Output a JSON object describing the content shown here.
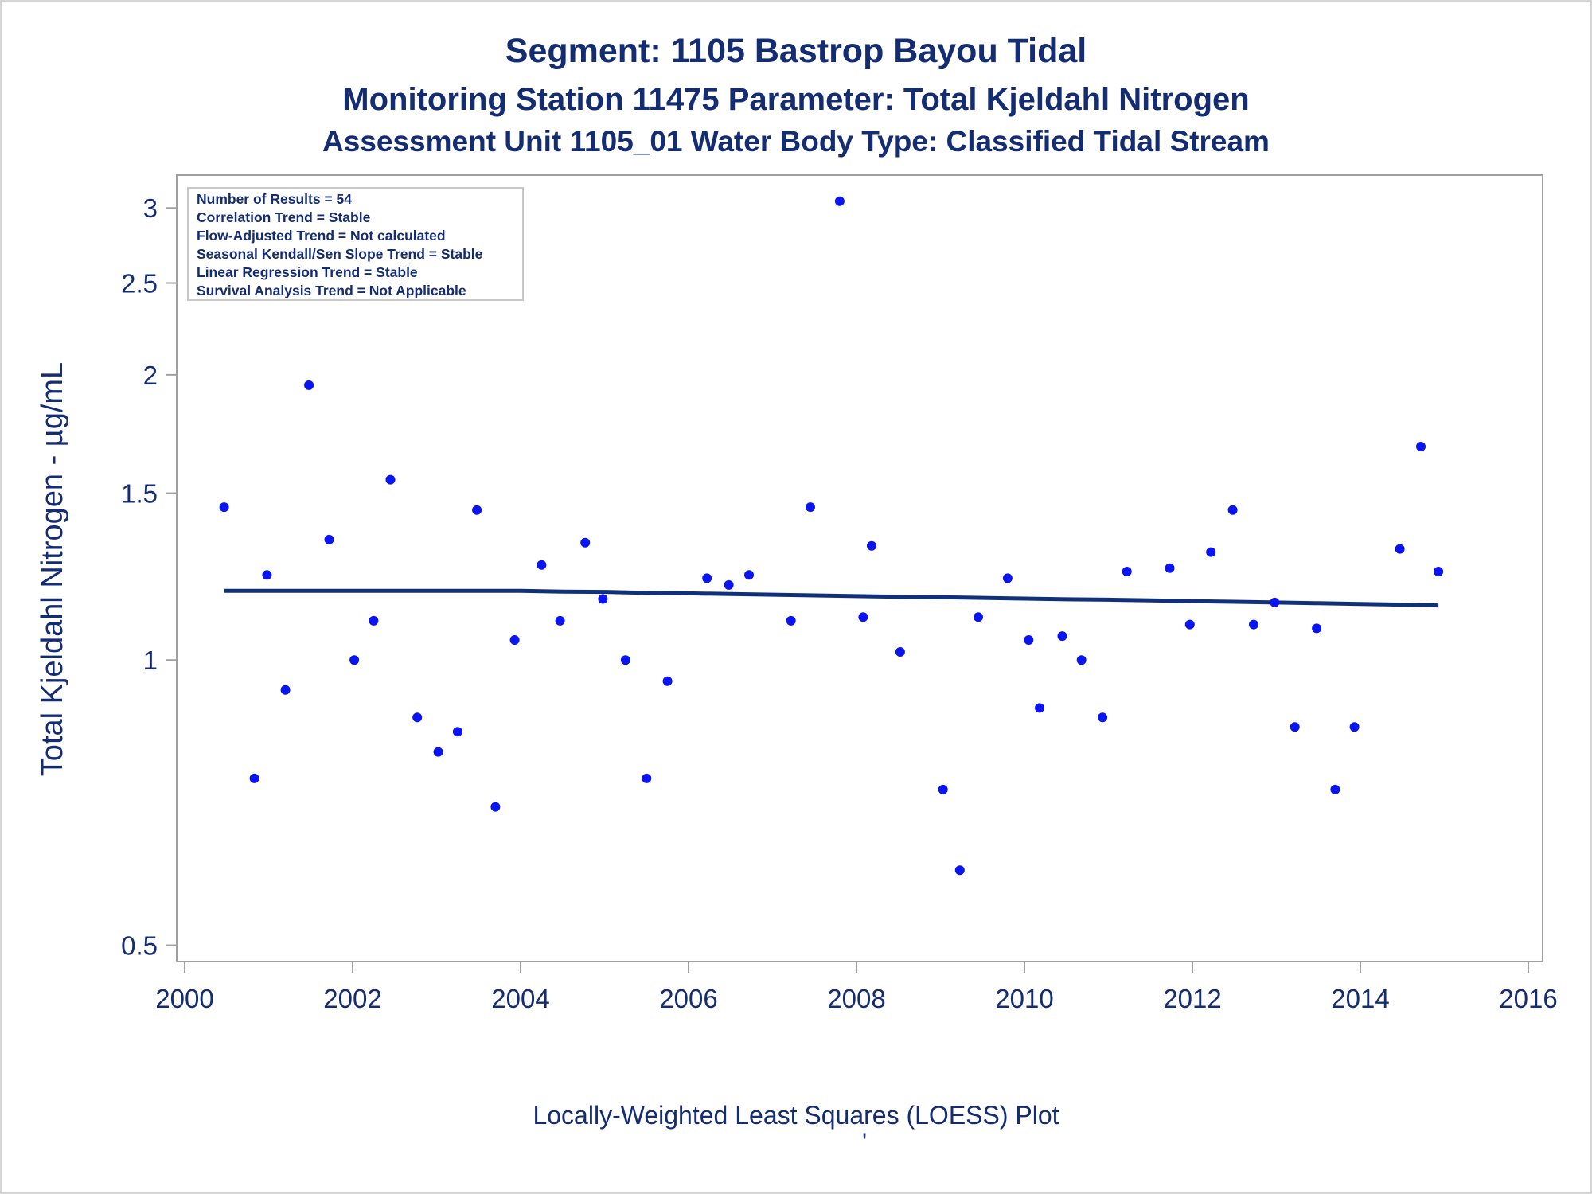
{
  "titles": {
    "line1": "Segment: 1105  Bastrop Bayou Tidal",
    "line2": "Monitoring Station 11475 Parameter: Total Kjeldahl Nitrogen",
    "line3": "Assessment Unit 1105_01   Water Body Type: Classified Tidal Stream"
  },
  "footnote": "Locally-Weighted Least Squares (LOESS) Plot",
  "footnote_mark": "'",
  "stats_box": [
    "Number of Results = 54",
    "Correlation Trend = Stable",
    "Flow-Adjusted Trend = Not calculated",
    "Seasonal Kendall/Sen Slope Trend = Stable",
    "Linear Regression Trend = Stable",
    "Survival Analysis Trend = Not Applicable"
  ],
  "colors": {
    "text": "#142c72",
    "points": "#0a14f0",
    "loess": "#10307a",
    "axis": "#a0a0a0"
  },
  "chart_data": {
    "type": "scatter",
    "ylabel": "Total Kjeldahl Nitrogen -  µg/mL",
    "xlabel": "",
    "x_ticks": [
      "2000",
      "2002",
      "2004",
      "2006",
      "2008",
      "2010",
      "2012",
      "2014",
      "2016"
    ],
    "y_ticks": [
      "0.5",
      "1",
      "1.5",
      "2",
      "2.5",
      "3"
    ],
    "xlim": [
      2000,
      2016
    ],
    "ylim": [
      0.49,
      3.15
    ],
    "y_scale": "log",
    "grid": false,
    "legend": "none",
    "series": [
      {
        "kind": "points",
        "x": [
          2000.47,
          2000.83,
          2000.98,
          2001.2,
          2001.48,
          2001.72,
          2002.02,
          2002.25,
          2002.45,
          2002.77,
          2003.02,
          2003.25,
          2003.48,
          2003.7,
          2003.93,
          2004.25,
          2004.47,
          2004.77,
          2004.98,
          2005.25,
          2005.5,
          2005.75,
          2006.22,
          2006.48,
          2006.72,
          2007.22,
          2007.45,
          2007.8,
          2008.08,
          2008.18,
          2008.52,
          2009.03,
          2009.23,
          2009.45,
          2009.8,
          2010.05,
          2010.18,
          2010.45,
          2010.68,
          2010.93,
          2011.22,
          2011.73,
          2011.97,
          2012.22,
          2012.48,
          2012.73,
          2012.98,
          2013.22,
          2013.48,
          2013.7,
          2013.93,
          2014.47,
          2014.72,
          2014.93
        ],
        "y": [
          1.45,
          0.75,
          1.23,
          0.93,
          1.95,
          1.34,
          1.0,
          1.1,
          1.55,
          0.87,
          0.8,
          0.84,
          1.44,
          0.7,
          1.05,
          1.26,
          1.1,
          1.33,
          1.16,
          1.0,
          0.75,
          0.95,
          1.22,
          1.2,
          1.23,
          1.1,
          1.45,
          3.05,
          1.11,
          1.32,
          1.02,
          0.73,
          0.6,
          1.11,
          1.22,
          1.05,
          0.89,
          1.06,
          1.0,
          0.87,
          1.24,
          1.25,
          1.09,
          1.3,
          1.44,
          1.09,
          1.15,
          0.85,
          1.08,
          0.73,
          0.85,
          1.31,
          1.68,
          1.24
        ]
      },
      {
        "kind": "loess",
        "x": [
          2000.47,
          2001.5,
          2002.5,
          2003.5,
          2004.0,
          2004.5,
          2005.0,
          2005.5,
          2006.0,
          2006.5,
          2007.0,
          2007.5,
          2008.0,
          2008.5,
          2009.0,
          2009.5,
          2010.0,
          2010.5,
          2011.0,
          2011.5,
          2012.0,
          2012.5,
          2013.0,
          2013.5,
          2014.0,
          2014.5,
          2014.93
        ],
        "y": [
          1.183,
          1.183,
          1.183,
          1.183,
          1.183,
          1.181,
          1.18,
          1.177,
          1.176,
          1.174,
          1.172,
          1.17,
          1.168,
          1.166,
          1.165,
          1.163,
          1.161,
          1.159,
          1.158,
          1.156,
          1.154,
          1.152,
          1.15,
          1.148,
          1.146,
          1.144,
          1.142
        ]
      }
    ]
  }
}
